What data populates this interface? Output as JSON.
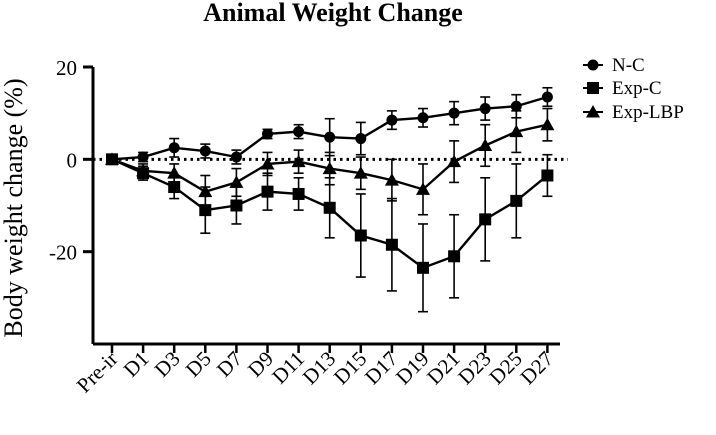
{
  "chart_data": {
    "type": "line",
    "title": "Animal Weight Change",
    "xlabel": "",
    "ylabel": "Body weight change (%)",
    "ylim": [
      -40,
      20
    ],
    "yticks": [
      20,
      0,
      -20
    ],
    "categories": [
      "Pre-ir",
      "D1",
      "D3",
      "D5",
      "D7",
      "D9",
      "D11",
      "D13",
      "D15",
      "D17",
      "D19",
      "D21",
      "D23",
      "D25",
      "D27"
    ],
    "reference_line": 0,
    "legend_position": "top-right",
    "series": [
      {
        "name": "N-C",
        "marker": "circle",
        "values": [
          0,
          0.5,
          2.5,
          1.8,
          0.5,
          5.5,
          6.0,
          4.8,
          4.5,
          8.5,
          9.0,
          10.0,
          11.0,
          11.5,
          13.5
        ],
        "errors": [
          0.5,
          1.0,
          2.0,
          1.5,
          1.5,
          1.0,
          1.5,
          4.0,
          3.5,
          2.0,
          2.0,
          2.5,
          2.5,
          2.5,
          2.0
        ]
      },
      {
        "name": "Exp-C",
        "marker": "square",
        "values": [
          0,
          -3.0,
          -6.0,
          -11.0,
          -10.0,
          -7.0,
          -7.5,
          -10.5,
          -16.5,
          -18.5,
          -23.5,
          -21.0,
          -13.0,
          -9.0,
          -3.5
        ],
        "errors": [
          0.5,
          1.5,
          2.5,
          5.0,
          4.0,
          4.0,
          3.5,
          6.5,
          9.0,
          10.0,
          9.5,
          9.0,
          9.0,
          8.0,
          4.5
        ]
      },
      {
        "name": "Exp-LBP",
        "marker": "triangle",
        "values": [
          0,
          -2.5,
          -3.0,
          -7.0,
          -5.0,
          -1.0,
          -0.5,
          -2.0,
          -3.0,
          -4.5,
          -6.5,
          -0.5,
          3.0,
          6.0,
          7.5
        ],
        "errors": [
          0.5,
          1.5,
          2.0,
          3.5,
          3.0,
          2.5,
          2.5,
          3.5,
          3.5,
          4.5,
          5.5,
          4.5,
          4.5,
          4.5,
          3.5
        ]
      }
    ]
  }
}
